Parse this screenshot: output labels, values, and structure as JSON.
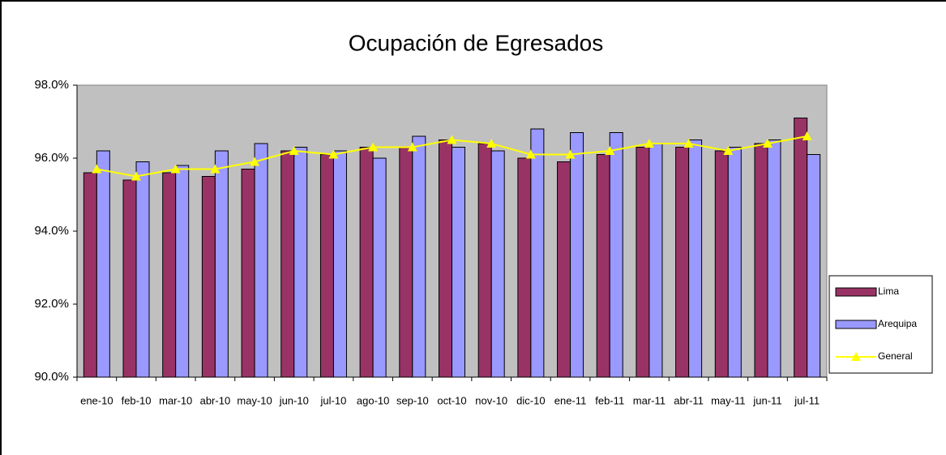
{
  "chart_data": {
    "type": "bar",
    "title": "Ocupación de Egresados",
    "categories": [
      "ene-10",
      "feb-10",
      "mar-10",
      "abr-10",
      "may-10",
      "jun-10",
      "jul-10",
      "ago-10",
      "sep-10",
      "oct-10",
      "nov-10",
      "dic-10",
      "ene-11",
      "feb-11",
      "mar-11",
      "abr-11",
      "may-11",
      "jun-11",
      "jul-11"
    ],
    "series": [
      {
        "name": "Lima",
        "type": "bar",
        "color": "#993366",
        "values": [
          95.6,
          95.4,
          95.6,
          95.5,
          95.7,
          96.2,
          96.1,
          96.3,
          96.3,
          96.5,
          96.4,
          96.0,
          95.9,
          96.1,
          96.3,
          96.3,
          96.2,
          96.4,
          97.1
        ]
      },
      {
        "name": "Arequipa",
        "type": "bar",
        "color": "#9999ff",
        "values": [
          96.2,
          95.9,
          95.8,
          96.2,
          96.4,
          96.3,
          96.2,
          96.0,
          96.6,
          96.3,
          96.2,
          96.8,
          96.7,
          96.7,
          96.4,
          96.5,
          96.3,
          96.5,
          96.1
        ]
      },
      {
        "name": "General",
        "type": "line",
        "color": "#ffff00",
        "values": [
          95.7,
          95.5,
          95.7,
          95.7,
          95.9,
          96.2,
          96.1,
          96.3,
          96.3,
          96.5,
          96.4,
          96.1,
          96.1,
          96.2,
          96.4,
          96.4,
          96.2,
          96.4,
          96.6
        ]
      }
    ],
    "ylim": [
      90,
      98
    ],
    "yticks": [
      {
        "value": 90,
        "label": "90.0%"
      },
      {
        "value": 92,
        "label": "92.0%"
      },
      {
        "value": 94,
        "label": "94.0%"
      },
      {
        "value": 96,
        "label": "96.0%"
      },
      {
        "value": 98,
        "label": "98.0%"
      }
    ],
    "legend": "right"
  }
}
